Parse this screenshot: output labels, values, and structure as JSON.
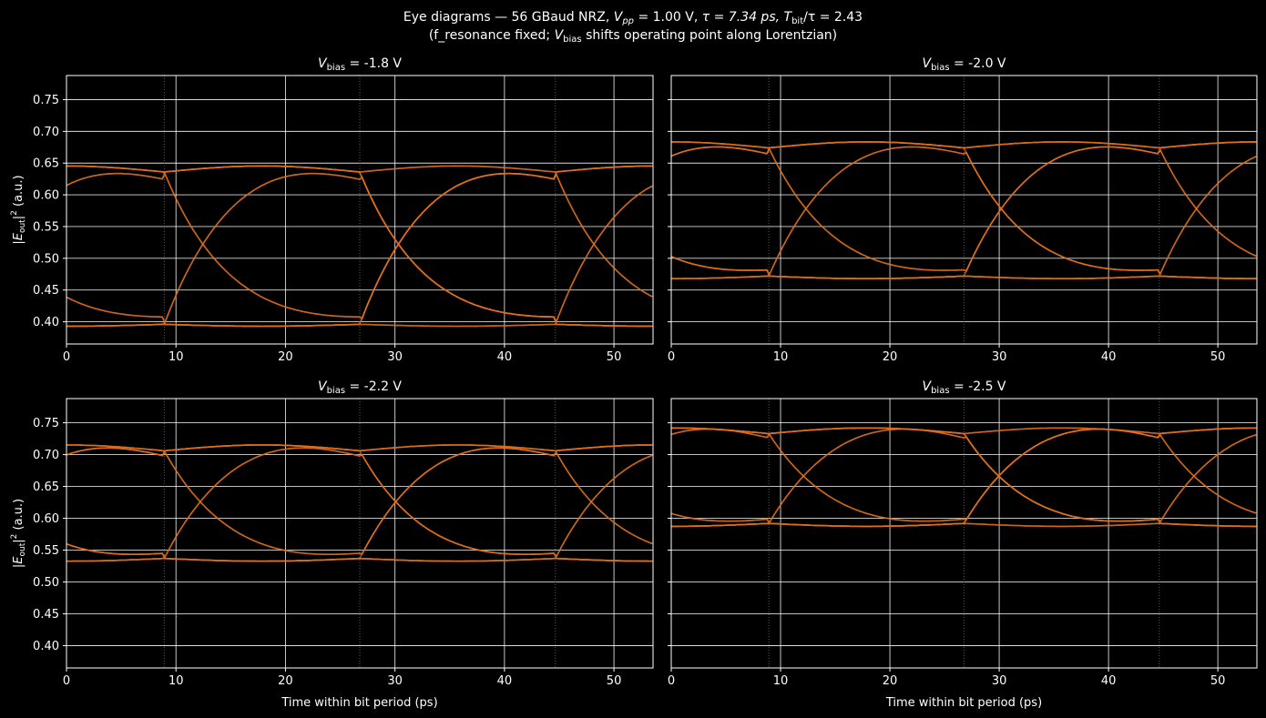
{
  "figure": {
    "title_parts": {
      "prefix": "Eye diagrams — 56 GBaud NRZ,  ",
      "vpp_sym": "V",
      "vpp_sub": "pp",
      "vpp_val": " = 1.00 V,  ",
      "tau": "τ = 7.34 ps,  ",
      "tbit_sym": "T",
      "tbit_sub": "bit",
      "tbit_val": "/τ = 2.43"
    },
    "subtitle_parts": {
      "prefix": "(f_resonance fixed; ",
      "v": "V",
      "sub": "bias",
      "suffix": " shifts operating point along Lorentzian)"
    },
    "xlabel": "Time within bit period (ps)",
    "ylabel_parts": {
      "pre": "|",
      "e": "E",
      "sub": "out",
      "post": "|",
      "sup": "2",
      "unit": " (a.u.)"
    },
    "colors": {
      "trace": "#e0701c",
      "background": "#000000",
      "grid": "#ffffff",
      "bit_marker": "#808080"
    }
  },
  "chart_data": [
    {
      "type": "line",
      "title": "V_bias = -1.8 V",
      "title_parts": {
        "v": "V",
        "sub": "bias",
        "val": " = -1.8 V"
      },
      "xlim": [
        0,
        53.57
      ],
      "ylim": [
        0.365,
        0.788
      ],
      "xticks": [
        0,
        10,
        20,
        30,
        40,
        50
      ],
      "yticks": [
        "0.40",
        "0.45",
        "0.50",
        "0.55",
        "0.60",
        "0.65",
        "0.70",
        "0.75"
      ],
      "bit_boundaries_ps": [
        8.93,
        26.79,
        44.64
      ],
      "levels": {
        "low": 0.396,
        "high": 0.636,
        "undershoot": 0.385,
        "overshoot": 0.671
      },
      "series": [
        {
          "bits": "010101010"
        },
        {
          "bits": "101010101"
        },
        {
          "bits": "011010110"
        },
        {
          "bits": "100101001"
        },
        {
          "bits": "111100001"
        },
        {
          "bits": "000011110"
        },
        {
          "bits": "110011001"
        },
        {
          "bits": "001100110"
        },
        {
          "bits": "011111110"
        },
        {
          "bits": "100000001"
        },
        {
          "bits": "111111111"
        },
        {
          "bits": "000000000"
        }
      ]
    },
    {
      "type": "line",
      "title": "V_bias = -2.0 V",
      "title_parts": {
        "v": "V",
        "sub": "bias",
        "val": " = -2.0 V"
      },
      "xlim": [
        0,
        53.57
      ],
      "ylim": [
        0.365,
        0.788
      ],
      "xticks": [
        0,
        10,
        20,
        30,
        40,
        50
      ],
      "yticks": [
        "0.40",
        "0.45",
        "0.50",
        "0.55",
        "0.60",
        "0.65",
        "0.70",
        "0.75"
      ],
      "bit_boundaries_ps": [
        8.93,
        26.79,
        44.64
      ],
      "levels": {
        "low": 0.472,
        "high": 0.674,
        "undershoot": 0.457,
        "overshoot": 0.709
      },
      "series": [
        {
          "bits": "101010101"
        },
        {
          "bits": "010101010"
        },
        {
          "bits": "100101001"
        },
        {
          "bits": "011010110"
        },
        {
          "bits": "110000111"
        },
        {
          "bits": "001111000"
        },
        {
          "bits": "110011001"
        },
        {
          "bits": "001100110"
        },
        {
          "bits": "100000001"
        },
        {
          "bits": "011111110"
        },
        {
          "bits": "111111111"
        },
        {
          "bits": "000000000"
        }
      ]
    },
    {
      "type": "line",
      "title": "V_bias = -2.2 V",
      "title_parts": {
        "v": "V",
        "sub": "bias",
        "val": " = -2.2 V"
      },
      "xlim": [
        0,
        53.57
      ],
      "ylim": [
        0.365,
        0.788
      ],
      "xticks": [
        0,
        10,
        20,
        30,
        40,
        50
      ],
      "yticks": [
        "0.40",
        "0.45",
        "0.50",
        "0.55",
        "0.60",
        "0.65",
        "0.70",
        "0.75"
      ],
      "bit_boundaries_ps": [
        8.93,
        26.79,
        44.64
      ],
      "levels": {
        "low": 0.537,
        "high": 0.706,
        "undershoot": 0.521,
        "overshoot": 0.74
      },
      "series": [
        {
          "bits": "101010101"
        },
        {
          "bits": "010101010"
        },
        {
          "bits": "100101001"
        },
        {
          "bits": "011010110"
        },
        {
          "bits": "110000111"
        },
        {
          "bits": "001111000"
        },
        {
          "bits": "110011001"
        },
        {
          "bits": "001100110"
        },
        {
          "bits": "100000001"
        },
        {
          "bits": "011111110"
        },
        {
          "bits": "111111111"
        },
        {
          "bits": "000000000"
        }
      ]
    },
    {
      "type": "line",
      "title": "V_bias = -2.5 V",
      "title_parts": {
        "v": "V",
        "sub": "bias",
        "val": " = -2.5 V"
      },
      "xlim": [
        0,
        53.57
      ],
      "ylim": [
        0.365,
        0.788
      ],
      "xticks": [
        0,
        10,
        20,
        30,
        40,
        50
      ],
      "yticks": [
        "0.40",
        "0.45",
        "0.50",
        "0.55",
        "0.60",
        "0.65",
        "0.70",
        "0.75"
      ],
      "bit_boundaries_ps": [
        8.93,
        26.79,
        44.64
      ],
      "levels": {
        "low": 0.592,
        "high": 0.733,
        "undershoot": 0.575,
        "overshoot": 0.766
      },
      "series": [
        {
          "bits": "010101010"
        },
        {
          "bits": "101010101"
        },
        {
          "bits": "011010110"
        },
        {
          "bits": "100101001"
        },
        {
          "bits": "111100001"
        },
        {
          "bits": "000011110"
        },
        {
          "bits": "110011001"
        },
        {
          "bits": "001100110"
        },
        {
          "bits": "011111110"
        },
        {
          "bits": "100000001"
        },
        {
          "bits": "111111111"
        },
        {
          "bits": "000000000"
        }
      ]
    }
  ]
}
